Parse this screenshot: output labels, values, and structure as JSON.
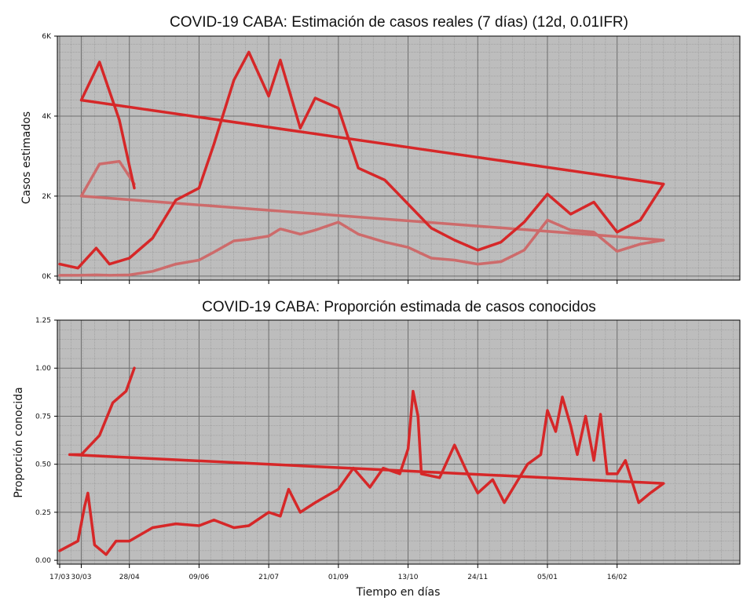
{
  "figure": {
    "xlabel": "Tiempo en días",
    "x_ticks": [
      "17/03",
      "28/04",
      "09/06",
      "21/07",
      "01/09",
      "13/10",
      "24/11",
      "05/01",
      "16/02",
      "30/03"
    ],
    "colors": {
      "background": "#bdbdbd",
      "estimated_line": "#d62728",
      "reported_line": "#cd6b6b"
    }
  },
  "chart_data": [
    {
      "type": "line",
      "title": "COVID-19 CABA: Estimación de casos reales (7 días) (12d, 0.01IFR)",
      "ylabel": "Casos estimados",
      "y_ticks": [
        "0K",
        "2K",
        "4K",
        "6K"
      ],
      "ylim": [
        -100,
        6000
      ],
      "grid": true,
      "x": [
        "17/03",
        "28/03",
        "08/04",
        "16/04",
        "28/04",
        "12/05",
        "26/05",
        "09/06",
        "18/06",
        "30/06",
        "09/07",
        "21/07",
        "28/07",
        "09/08",
        "18/08",
        "01/09",
        "13/09",
        "29/09",
        "13/10",
        "27/10",
        "10/11",
        "24/11",
        "08/12",
        "22/12",
        "05/01",
        "19/01",
        "02/02",
        "16/02",
        "02/03",
        "16/03",
        "30/03",
        "10/04",
        "22/04",
        "01/05"
      ],
      "series": [
        {
          "values": [
            300,
            200,
            700,
            300,
            450,
            950,
            1900,
            2200,
            3300,
            4900,
            5600,
            4500,
            5400,
            3700,
            4450,
            4200,
            2700,
            2400,
            1800,
            1200,
            900,
            650,
            850,
            1350,
            2050,
            1550,
            1850,
            1100,
            1400,
            2300,
            4400,
            5350,
            3900,
            2200
          ]
        },
        {
          "values": [
            20,
            20,
            30,
            20,
            30,
            120,
            300,
            400,
            600,
            880,
            920,
            1000,
            1180,
            1050,
            1150,
            1350,
            1050,
            850,
            720,
            450,
            400,
            300,
            360,
            650,
            1400,
            1150,
            1100,
            620,
            800,
            900,
            2000,
            2800,
            2870,
            2300
          ]
        }
      ]
    },
    {
      "type": "line",
      "title": "COVID-19 CABA: Proporción estimada de casos conocidos",
      "ylabel": "Proporción conocida",
      "y_ticks": [
        "0.00",
        "0.25",
        "0.50",
        "0.75",
        "1.00",
        "1.25"
      ],
      "ylim": [
        -0.02,
        1.25
      ],
      "grid": true,
      "x": [
        "17/03",
        "28/03",
        "01/04",
        "03/04",
        "07/04",
        "14/04",
        "20/04",
        "28/04",
        "12/05",
        "26/05",
        "09/06",
        "18/06",
        "30/06",
        "09/07",
        "21/07",
        "28/07",
        "02/08",
        "09/08",
        "18/08",
        "01/09",
        "10/09",
        "20/09",
        "28/09",
        "08/10",
        "13/10",
        "16/10",
        "19/10",
        "21/10",
        "01/11",
        "10/11",
        "18/11",
        "24/11",
        "03/12",
        "10/12",
        "17/12",
        "24/12",
        "01/01",
        "05/01",
        "10/01",
        "14/01",
        "19/01",
        "23/01",
        "28/01",
        "02/02",
        "06/02",
        "10/02",
        "16/02",
        "21/02",
        "01/03",
        "08/03",
        "16/03",
        "23/03",
        "30/03",
        "10/04",
        "18/04",
        "26/04",
        "01/05"
      ],
      "series": [
        {
          "values": [
            0.05,
            0.1,
            0.28,
            0.35,
            0.08,
            0.03,
            0.1,
            0.1,
            0.17,
            0.19,
            0.18,
            0.21,
            0.17,
            0.18,
            0.25,
            0.23,
            0.37,
            0.25,
            0.3,
            0.37,
            0.48,
            0.38,
            0.48,
            0.45,
            0.58,
            0.88,
            0.75,
            0.45,
            0.43,
            0.6,
            0.45,
            0.35,
            0.42,
            0.3,
            0.4,
            0.5,
            0.55,
            0.78,
            0.67,
            0.85,
            0.7,
            0.55,
            0.75,
            0.52,
            0.76,
            0.45,
            0.45,
            0.52,
            0.3,
            0.35,
            0.4,
            0.55,
            0.55,
            0.65,
            0.82,
            0.88,
            1.0
          ]
        }
      ]
    }
  ]
}
